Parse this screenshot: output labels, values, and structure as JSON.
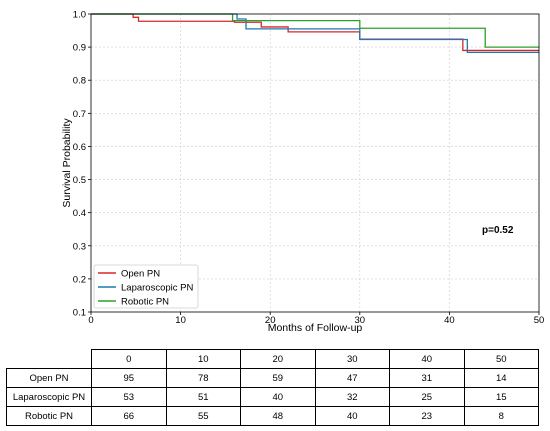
{
  "chart_data": {
    "type": "line",
    "subtype": "kaplan-meier step",
    "title": "",
    "xlabel": "Months of Follow-up",
    "ylabel": "Survival Probability",
    "xlim": [
      0,
      50
    ],
    "ylim": [
      0.1,
      1.0
    ],
    "x_ticks": [
      "0",
      "10",
      "20",
      "30",
      "40",
      "50"
    ],
    "y_ticks": [
      "0.1",
      "0.2",
      "0.3",
      "0.4",
      "0.5",
      "0.6",
      "0.7",
      "0.8",
      "0.9",
      "1.0"
    ],
    "grid": true,
    "legend_position": "lower-left",
    "annotation": "p=0.52",
    "series": [
      {
        "name": "Open PN",
        "color": "#d62728",
        "x": [
          0,
          4.7,
          5.3,
          16,
          19,
          22,
          30,
          41.5,
          50
        ],
        "y": [
          1.0,
          0.99,
          0.978,
          0.975,
          0.961,
          0.946,
          0.924,
          0.89,
          0.89
        ]
      },
      {
        "name": "Laparoscopic PN",
        "color": "#1f77b4",
        "x": [
          0,
          16.3,
          17.3,
          30,
          42,
          50
        ],
        "y": [
          1.0,
          0.985,
          0.955,
          0.923,
          0.884,
          0.884
        ]
      },
      {
        "name": "Robotic PN",
        "color": "#2ca02c",
        "x": [
          0,
          15.8,
          30,
          44,
          50
        ],
        "y": [
          1.0,
          0.98,
          0.957,
          0.9,
          0.9
        ]
      }
    ]
  },
  "risk_table": {
    "times": [
      "0",
      "10",
      "20",
      "30",
      "40",
      "50"
    ],
    "rows": [
      {
        "label": "Open PN",
        "counts": [
          "95",
          "78",
          "59",
          "47",
          "31",
          "14"
        ]
      },
      {
        "label": "Laparoscopic PN",
        "counts": [
          "53",
          "51",
          "40",
          "32",
          "25",
          "15"
        ]
      },
      {
        "label": "Robotic PN",
        "counts": [
          "66",
          "55",
          "48",
          "40",
          "23",
          "8"
        ]
      }
    ]
  }
}
